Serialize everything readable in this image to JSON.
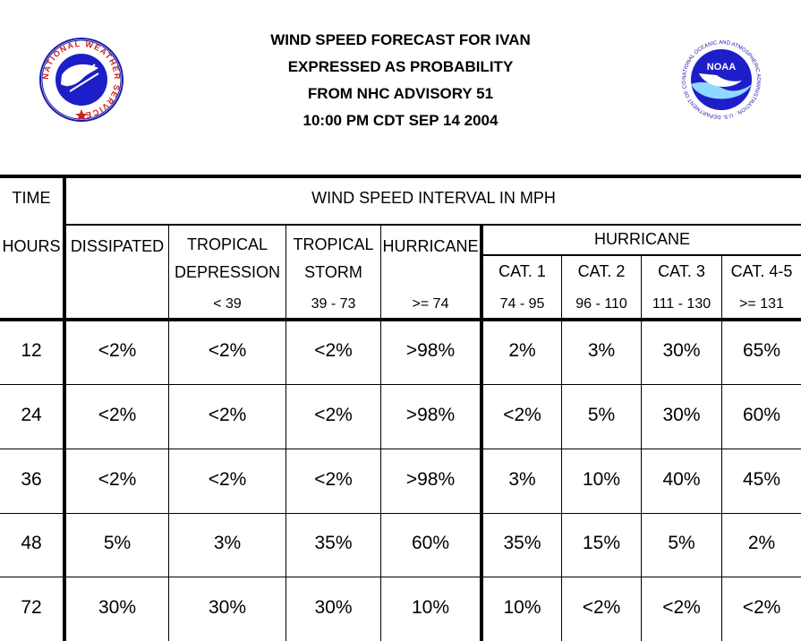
{
  "title_lines": [
    "WIND SPEED FORECAST FOR IVAN",
    "EXPRESSED AS PROBABILITY",
    "FROM NHC ADVISORY   51",
    "10:00 PM CDT SEP 14 2004"
  ],
  "logos": {
    "left": {
      "text": "NATIONAL WEATHER SERVICE",
      "icon": "nws-logo"
    },
    "right": {
      "text": "NOAA",
      "ring_text": "NATIONAL OCEANIC AND ATMOSPHERIC ADMINISTRATION · U.S. DEPARTMENT OF COMMERCE",
      "icon": "noaa-logo"
    }
  },
  "header": {
    "time_label": "TIME",
    "interval_label": "WIND SPEED INTERVAL IN MPH",
    "hours_label": "HOURS",
    "hurricane_group_label": "HURRICANE",
    "columns": [
      {
        "line1": "DISSIPATED",
        "line2": "",
        "range": ""
      },
      {
        "line1": "TROPICAL",
        "line2": "DEPRESSION",
        "range": "< 39"
      },
      {
        "line1": "TROPICAL",
        "line2": "STORM",
        "range": "39 - 73"
      },
      {
        "line1": "HURRICANE",
        "line2": "",
        "range": ">= 74"
      },
      {
        "line1": "CAT. 1",
        "range": "74 - 95"
      },
      {
        "line1": "CAT. 2",
        "range": "96 - 110"
      },
      {
        "line1": "CAT. 3",
        "range": "111 - 130"
      },
      {
        "line1": "CAT. 4-5",
        "range": ">= 131"
      }
    ]
  },
  "rows": [
    {
      "hours": "12",
      "values": [
        "<2%",
        "<2%",
        "<2%",
        ">98%",
        "2%",
        "3%",
        "30%",
        "65%"
      ]
    },
    {
      "hours": "24",
      "values": [
        "<2%",
        "<2%",
        "<2%",
        ">98%",
        "<2%",
        "5%",
        "30%",
        "60%"
      ]
    },
    {
      "hours": "36",
      "values": [
        "<2%",
        "<2%",
        "<2%",
        ">98%",
        "3%",
        "10%",
        "40%",
        "45%"
      ]
    },
    {
      "hours": "48",
      "values": [
        "5%",
        "3%",
        "35%",
        "60%",
        "35%",
        "15%",
        "5%",
        "2%"
      ]
    },
    {
      "hours": "72",
      "values": [
        "30%",
        "30%",
        "30%",
        "10%",
        "10%",
        "<2%",
        "<2%",
        "<2%"
      ]
    }
  ]
}
